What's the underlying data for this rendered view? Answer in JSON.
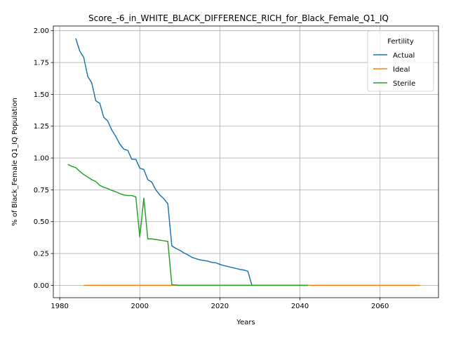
{
  "chart_data": {
    "type": "line",
    "title": "Score_-6_in_WHITE_BLACK_DIFFERENCE_RICH_for_Black_Female_Q1_IQ",
    "xlabel": "Years",
    "ylabel": "% of Black_Female Q1_IQ Population",
    "xlim": [
      1978.4,
      2074.6
    ],
    "ylim": [
      -0.097,
      2.037
    ],
    "xticks": [
      1980,
      2000,
      2020,
      2040,
      2060
    ],
    "xtick_labels": [
      "1980",
      "2000",
      "2020",
      "2040",
      "2060"
    ],
    "yticks": [
      0.0,
      0.25,
      0.5,
      0.75,
      1.0,
      1.25,
      1.5,
      1.75,
      2.0
    ],
    "ytick_labels": [
      "0.00",
      "0.25",
      "0.50",
      "0.75",
      "1.00",
      "1.25",
      "1.50",
      "1.75",
      "2.00"
    ],
    "grid": true,
    "legend": {
      "title": "Fertility",
      "position": "top-right"
    },
    "series": [
      {
        "name": "Actual",
        "color": "#1f77b4",
        "x": [
          1984,
          1985,
          1986,
          1987,
          1988,
          1989,
          1990,
          1991,
          1992,
          1993,
          1994,
          1995,
          1996,
          1997,
          1998,
          1999,
          2000,
          2001,
          2002,
          2003,
          2004,
          2005,
          2006,
          2007,
          2008,
          2009,
          2010,
          2011,
          2012,
          2013,
          2014,
          2015,
          2016,
          2017,
          2018,
          2019,
          2020,
          2021,
          2022,
          2023,
          2024,
          2025,
          2026,
          2027,
          2028,
          2029,
          2030,
          2035,
          2040,
          2042
        ],
        "y": [
          1.94,
          1.84,
          1.79,
          1.64,
          1.59,
          1.45,
          1.43,
          1.32,
          1.29,
          1.22,
          1.17,
          1.11,
          1.07,
          1.06,
          0.99,
          0.99,
          0.92,
          0.91,
          0.83,
          0.81,
          0.75,
          0.71,
          0.68,
          0.64,
          0.31,
          0.29,
          0.275,
          0.255,
          0.24,
          0.22,
          0.21,
          0.2,
          0.195,
          0.19,
          0.18,
          0.177,
          0.165,
          0.155,
          0.148,
          0.14,
          0.133,
          0.125,
          0.12,
          0.11,
          0.0,
          0.0,
          0.0,
          0.0,
          0.0,
          0.0
        ]
      },
      {
        "name": "Ideal",
        "color": "#ff7f0e",
        "x": [
          1986,
          2000,
          2020,
          2040,
          2060,
          2070
        ],
        "y": [
          0.0,
          0.0,
          0.0,
          0.0,
          0.0,
          0.0
        ]
      },
      {
        "name": "Sterile",
        "color": "#2ca02c",
        "x": [
          1982,
          1983,
          1984,
          1985,
          1986,
          1987,
          1988,
          1989,
          1990,
          1991,
          1992,
          1993,
          1994,
          1995,
          1996,
          1997,
          1998,
          1999,
          2000,
          2001,
          2002,
          2003,
          2004,
          2005,
          2006,
          2007,
          2008,
          2010,
          2020,
          2030,
          2040,
          2042
        ],
        "y": [
          0.95,
          0.935,
          0.925,
          0.895,
          0.87,
          0.85,
          0.83,
          0.815,
          0.785,
          0.77,
          0.76,
          0.745,
          0.735,
          0.72,
          0.71,
          0.705,
          0.705,
          0.695,
          0.38,
          0.685,
          0.365,
          0.365,
          0.36,
          0.355,
          0.35,
          0.345,
          0.005,
          0.0,
          0.0,
          0.0,
          0.0,
          0.0
        ]
      }
    ]
  }
}
